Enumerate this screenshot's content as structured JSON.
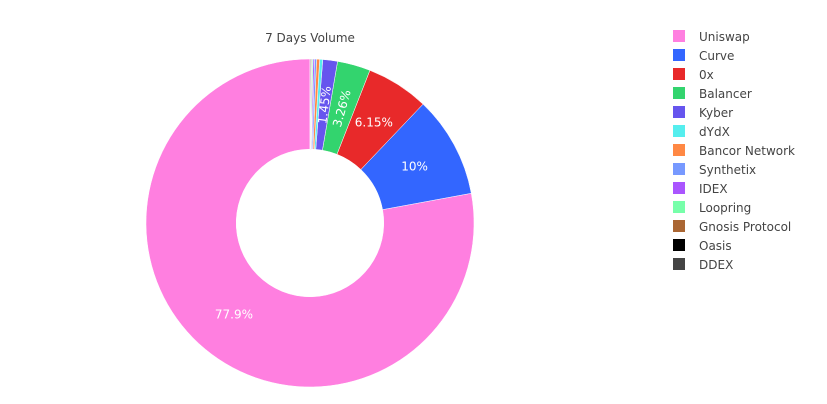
{
  "chart_data": {
    "type": "pie",
    "hole": 0.45,
    "title": "7 Days Volume",
    "legend_position": "right",
    "categories": [
      "Uniswap",
      "Curve",
      "0x",
      "Balancer",
      "Kyber",
      "dYdX",
      "Bancor Network",
      "Synthetix",
      "IDEX",
      "Loopring",
      "Gnosis Protocol",
      "Oasis",
      "DDEX"
    ],
    "values": [
      77.9,
      10,
      6.15,
      3.26,
      1.45,
      0.3,
      0.3,
      0.2,
      0.15,
      0.1,
      0.08,
      0.06,
      0.05
    ],
    "labels": [
      "77.9%",
      "10%",
      "6.15%",
      "3.26%",
      "1.45%",
      "",
      "",
      "",
      "",
      "",
      "",
      "",
      ""
    ],
    "colors": [
      "#ff7fe0",
      "#3366ff",
      "#e8292a",
      "#33d46e",
      "#6655ee",
      "#55eeee",
      "#ff8844",
      "#7799ff",
      "#aa55ff",
      "#77ffaa",
      "#aa6633",
      "#000000",
      "#444444"
    ]
  }
}
